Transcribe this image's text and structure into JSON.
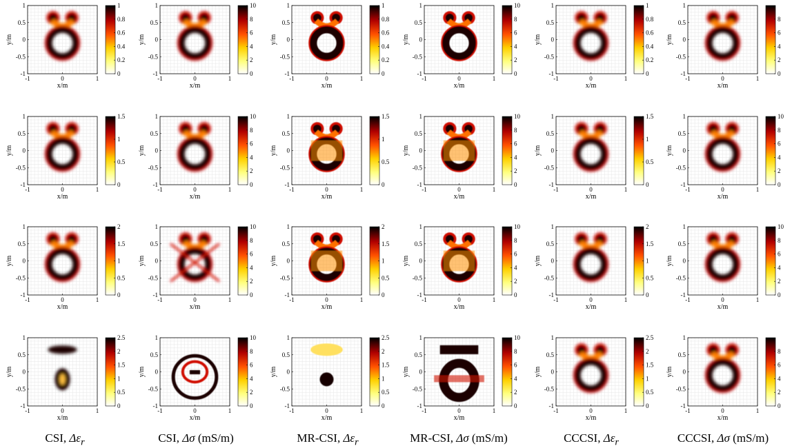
{
  "figure": {
    "columns": [
      {
        "method": "CSI",
        "quantity": "Δε",
        "sub": "r",
        "unit": ""
      },
      {
        "method": "CSI",
        "quantity": "Δσ",
        "sub": "",
        "unit": "(mS/m)"
      },
      {
        "method": "MR-CSI",
        "quantity": "Δε",
        "sub": "r",
        "unit": ""
      },
      {
        "method": "MR-CSI",
        "quantity": "Δσ",
        "sub": "",
        "unit": "(mS/m)"
      },
      {
        "method": "CCCSI",
        "quantity": "Δε",
        "sub": "r",
        "unit": ""
      },
      {
        "method": "CCCSI",
        "quantity": "Δσ",
        "sub": "",
        "unit": "(mS/m)"
      }
    ]
  },
  "chart_data": [
    {
      "type": "heatmap",
      "row": 1,
      "col": 1,
      "xlabel": "x/m",
      "ylabel": "y/m",
      "xlim": [
        -1,
        1
      ],
      "ylim": [
        -1,
        1
      ],
      "xticks": [
        -1,
        0,
        1
      ],
      "yticks": [
        -1,
        -0.5,
        0,
        0.5,
        1
      ],
      "grid": true,
      "colormap": "hot-inverted",
      "colorbar": {
        "range": [
          0,
          1
        ],
        "ticks": [
          0,
          0.2,
          0.4,
          0.6,
          0.8,
          1
        ]
      },
      "shape": "ring-with-ears",
      "sharpness": "smooth"
    },
    {
      "type": "heatmap",
      "row": 1,
      "col": 2,
      "xlabel": "x/m",
      "ylabel": "y/m",
      "xlim": [
        -1,
        1
      ],
      "ylim": [
        -1,
        1
      ],
      "xticks": [
        -1,
        0,
        1
      ],
      "yticks": [
        -1,
        -0.5,
        0,
        0.5,
        1
      ],
      "grid": true,
      "colormap": "hot-inverted",
      "colorbar": {
        "range": [
          0,
          10
        ],
        "ticks": [
          0,
          2,
          4,
          6,
          8,
          10
        ]
      },
      "shape": "ring-with-ears",
      "sharpness": "smooth"
    },
    {
      "type": "heatmap",
      "row": 1,
      "col": 3,
      "xlabel": "x/m",
      "ylabel": "y/m",
      "xlim": [
        -1,
        1
      ],
      "ylim": [
        -1,
        1
      ],
      "xticks": [
        -1,
        0,
        1
      ],
      "yticks": [
        -1,
        -0.5,
        0,
        0.5,
        1
      ],
      "grid": true,
      "colormap": "hot-inverted",
      "colorbar": {
        "range": [
          0,
          1
        ],
        "ticks": [
          0,
          0.2,
          0.4,
          0.6,
          0.8,
          1
        ]
      },
      "shape": "ring-with-ears",
      "sharpness": "blocky"
    },
    {
      "type": "heatmap",
      "row": 1,
      "col": 4,
      "xlabel": "x/m",
      "ylabel": "y/m",
      "xlim": [
        -1,
        1
      ],
      "ylim": [
        -1,
        1
      ],
      "xticks": [
        -1,
        0,
        1
      ],
      "yticks": [
        -1,
        -0.5,
        0,
        0.5,
        1
      ],
      "grid": true,
      "colormap": "hot-inverted",
      "colorbar": {
        "range": [
          0,
          10
        ],
        "ticks": [
          0,
          2,
          4,
          6,
          8,
          10
        ]
      },
      "shape": "ring-with-ears",
      "sharpness": "blocky"
    },
    {
      "type": "heatmap",
      "row": 1,
      "col": 5,
      "xlabel": "x/m",
      "ylabel": "y/m",
      "xlim": [
        -1,
        1
      ],
      "ylim": [
        -1,
        1
      ],
      "xticks": [
        -1,
        0,
        1
      ],
      "yticks": [
        -1,
        -0.5,
        0,
        0.5,
        1
      ],
      "grid": true,
      "colormap": "hot-inverted",
      "colorbar": {
        "range": [
          0,
          1
        ],
        "ticks": [
          0,
          0.2,
          0.4,
          0.6,
          0.8,
          1
        ]
      },
      "shape": "ring-with-ears",
      "sharpness": "smooth"
    },
    {
      "type": "heatmap",
      "row": 1,
      "col": 6,
      "xlabel": "x/m",
      "ylabel": "y/m",
      "xlim": [
        -1,
        1
      ],
      "ylim": [
        -1,
        1
      ],
      "xticks": [
        -1,
        0,
        1
      ],
      "yticks": [
        -1,
        -0.5,
        0,
        0.5,
        1
      ],
      "grid": true,
      "colormap": "hot-inverted",
      "colorbar": {
        "range": [
          0,
          10
        ],
        "ticks": [
          0,
          2,
          4,
          6,
          8
        ]
      },
      "shape": "ring-with-ears",
      "sharpness": "smooth"
    },
    {
      "type": "heatmap",
      "row": 2,
      "col": 1,
      "xlabel": "x/m",
      "ylabel": "y/m",
      "xlim": [
        -1,
        1
      ],
      "ylim": [
        -1,
        1
      ],
      "xticks": [
        -1,
        0,
        1
      ],
      "yticks": [
        -1,
        -0.5,
        0,
        0.5,
        1
      ],
      "grid": true,
      "colormap": "hot-inverted",
      "colorbar": {
        "range": [
          0,
          1.5
        ],
        "ticks": [
          0,
          0.5,
          1,
          1.5
        ]
      },
      "shape": "ring-with-ears",
      "sharpness": "smooth"
    },
    {
      "type": "heatmap",
      "row": 2,
      "col": 2,
      "xlabel": "x/m",
      "ylabel": "y/m",
      "xlim": [
        -1,
        1
      ],
      "ylim": [
        -1,
        1
      ],
      "xticks": [
        -1,
        0,
        1
      ],
      "yticks": [
        -1,
        -0.5,
        0,
        0.5,
        1
      ],
      "grid": true,
      "colormap": "hot-inverted",
      "colorbar": {
        "range": [
          0,
          10
        ],
        "ticks": [
          0,
          2,
          4,
          6,
          8,
          10
        ]
      },
      "shape": "ring-with-ears",
      "sharpness": "smooth"
    },
    {
      "type": "heatmap",
      "row": 2,
      "col": 3,
      "xlabel": "x/m",
      "ylabel": "y/m",
      "xlim": [
        -1,
        1
      ],
      "ylim": [
        -1,
        1
      ],
      "xticks": [
        -1,
        0,
        1
      ],
      "yticks": [
        -1,
        -0.5,
        0,
        0.5,
        1
      ],
      "grid": true,
      "colormap": "hot-inverted",
      "colorbar": {
        "range": [
          0,
          1.5
        ],
        "ticks": [
          0,
          0.5,
          1,
          1.5
        ]
      },
      "shape": "ring-with-ears",
      "sharpness": "blocky"
    },
    {
      "type": "heatmap",
      "row": 2,
      "col": 4,
      "xlabel": "x/m",
      "ylabel": "y/m",
      "xlim": [
        -1,
        1
      ],
      "ylim": [
        -1,
        1
      ],
      "xticks": [
        -1,
        0,
        1
      ],
      "yticks": [
        -1,
        -0.5,
        0,
        0.5,
        1
      ],
      "grid": true,
      "colormap": "hot-inverted",
      "colorbar": {
        "range": [
          0,
          10
        ],
        "ticks": [
          0,
          2,
          4,
          6,
          8,
          10
        ]
      },
      "shape": "ring-with-ears",
      "sharpness": "blocky"
    },
    {
      "type": "heatmap",
      "row": 2,
      "col": 5,
      "xlabel": "x/m",
      "ylabel": "y/m",
      "xlim": [
        -1,
        1
      ],
      "ylim": [
        -1,
        1
      ],
      "xticks": [
        -1,
        0,
        1
      ],
      "yticks": [
        -1,
        -0.5,
        0,
        0.5,
        1
      ],
      "grid": true,
      "colormap": "hot-inverted",
      "colorbar": {
        "range": [
          0,
          1.5
        ],
        "ticks": [
          0,
          0.5,
          1,
          1.5
        ]
      },
      "shape": "ring-with-ears",
      "sharpness": "smooth"
    },
    {
      "type": "heatmap",
      "row": 2,
      "col": 6,
      "xlabel": "x/m",
      "ylabel": "y/m",
      "xlim": [
        -1,
        1
      ],
      "ylim": [
        -1,
        1
      ],
      "xticks": [
        -1,
        0,
        1
      ],
      "yticks": [
        -1,
        -0.5,
        0,
        0.5,
        1
      ],
      "grid": true,
      "colormap": "hot-inverted",
      "colorbar": {
        "range": [
          0,
          10
        ],
        "ticks": [
          0,
          2,
          4,
          6,
          8,
          10
        ]
      },
      "shape": "ring-with-ears",
      "sharpness": "smooth"
    },
    {
      "type": "heatmap",
      "row": 3,
      "col": 1,
      "xlabel": "x/m",
      "ylabel": "y/m",
      "xlim": [
        -1,
        1
      ],
      "ylim": [
        -1,
        1
      ],
      "xticks": [
        -1,
        0,
        1
      ],
      "yticks": [
        -1,
        -0.5,
        0,
        0.5,
        1
      ],
      "grid": true,
      "colormap": "hot-inverted",
      "colorbar": {
        "range": [
          0,
          2
        ],
        "ticks": [
          0,
          0.5,
          1,
          1.5,
          2
        ]
      },
      "shape": "ring-with-ears",
      "sharpness": "smooth"
    },
    {
      "type": "heatmap",
      "row": 3,
      "col": 2,
      "xlabel": "x/m",
      "ylabel": "y/m",
      "xlim": [
        -1,
        1
      ],
      "ylim": [
        -1,
        1
      ],
      "xticks": [
        -1,
        0,
        1
      ],
      "yticks": [
        -1,
        -0.5,
        0,
        0.5,
        1
      ],
      "grid": true,
      "colormap": "hot-inverted",
      "colorbar": {
        "range": [
          0,
          10
        ],
        "ticks": [
          0,
          2,
          4,
          6,
          8,
          10
        ]
      },
      "shape": "distorted",
      "sharpness": "smooth"
    },
    {
      "type": "heatmap",
      "row": 3,
      "col": 3,
      "xlabel": "x/m",
      "ylabel": "y/m",
      "xlim": [
        -1,
        1
      ],
      "ylim": [
        -1,
        1
      ],
      "xticks": [
        -1,
        0,
        1
      ],
      "yticks": [
        -1,
        -0.5,
        0,
        0.5,
        1
      ],
      "grid": true,
      "colormap": "hot-inverted",
      "colorbar": {
        "range": [
          0,
          2
        ],
        "ticks": [
          0,
          0.5,
          1,
          1.5,
          2
        ]
      },
      "shape": "ring-with-ears",
      "sharpness": "blocky"
    },
    {
      "type": "heatmap",
      "row": 3,
      "col": 4,
      "xlabel": "x/m",
      "ylabel": "y/m",
      "xlim": [
        -1,
        1
      ],
      "ylim": [
        -1,
        1
      ],
      "xticks": [
        -1,
        0,
        1
      ],
      "yticks": [
        -1,
        -0.5,
        0,
        0.5,
        1
      ],
      "grid": true,
      "colormap": "hot-inverted",
      "colorbar": {
        "range": [
          0,
          10
        ],
        "ticks": [
          0,
          2,
          4,
          6,
          8,
          10
        ]
      },
      "shape": "ring-with-ears",
      "sharpness": "blocky"
    },
    {
      "type": "heatmap",
      "row": 3,
      "col": 5,
      "xlabel": "x/m",
      "ylabel": "y/m",
      "xlim": [
        -1,
        1
      ],
      "ylim": [
        -1,
        1
      ],
      "xticks": [
        -1,
        0,
        1
      ],
      "yticks": [
        -1,
        -0.5,
        0,
        0.5,
        1
      ],
      "grid": true,
      "colormap": "hot-inverted",
      "colorbar": {
        "range": [
          0,
          2
        ],
        "ticks": [
          0,
          0.5,
          1,
          1.5,
          2
        ]
      },
      "shape": "ring-with-ears",
      "sharpness": "smooth"
    },
    {
      "type": "heatmap",
      "row": 3,
      "col": 6,
      "xlabel": "x/m",
      "ylabel": "y/m",
      "xlim": [
        -1,
        1
      ],
      "ylim": [
        -1,
        1
      ],
      "xticks": [
        -1,
        0,
        1
      ],
      "yticks": [
        -1,
        -0.5,
        0,
        0.5,
        1
      ],
      "grid": true,
      "colormap": "hot-inverted",
      "colorbar": {
        "range": [
          0,
          10
        ],
        "ticks": [
          0,
          2,
          4,
          6,
          8,
          10
        ]
      },
      "shape": "ring-with-ears",
      "sharpness": "smooth"
    },
    {
      "type": "heatmap",
      "row": 4,
      "col": 1,
      "xlabel": "x/m",
      "ylabel": "y/m",
      "xlim": [
        -1,
        1
      ],
      "ylim": [
        -1,
        1
      ],
      "xticks": [
        -1,
        0,
        1
      ],
      "yticks": [
        -1,
        -0.5,
        0,
        0.5,
        1
      ],
      "grid": true,
      "colormap": "hot-inverted",
      "colorbar": {
        "range": [
          0,
          2.5
        ],
        "ticks": [
          0,
          0.5,
          1,
          1.5,
          2,
          2.5
        ]
      },
      "shape": "bar-and-blob",
      "sharpness": "smooth"
    },
    {
      "type": "heatmap",
      "row": 4,
      "col": 2,
      "xlabel": "x/m",
      "ylabel": "y/m",
      "xlim": [
        -1,
        1
      ],
      "ylim": [
        -1,
        1
      ],
      "xticks": [
        -1,
        0,
        1
      ],
      "yticks": [
        -1,
        -0.5,
        0,
        0.5,
        1
      ],
      "grid": true,
      "colormap": "hot-inverted",
      "colorbar": {
        "range": [
          0,
          10
        ],
        "ticks": [
          0,
          2,
          4,
          6,
          8,
          10
        ]
      },
      "shape": "distorted-ring",
      "sharpness": "blocky"
    },
    {
      "type": "heatmap",
      "row": 4,
      "col": 3,
      "xlabel": "x/m",
      "ylabel": "y/m",
      "xlim": [
        -1,
        1
      ],
      "ylim": [
        -1,
        1
      ],
      "xticks": [
        -1,
        0,
        1
      ],
      "yticks": [
        -1,
        -0.5,
        0,
        0.5,
        1
      ],
      "grid": true,
      "colormap": "hot-inverted",
      "colorbar": {
        "range": [
          0,
          2.5
        ],
        "ticks": [
          0,
          0.5,
          1,
          1.5,
          2,
          2.5
        ]
      },
      "shape": "bar-and-blob",
      "sharpness": "blocky"
    },
    {
      "type": "heatmap",
      "row": 4,
      "col": 4,
      "xlabel": "x/m",
      "ylabel": "y/m",
      "xlim": [
        -1,
        1
      ],
      "ylim": [
        -1,
        1
      ],
      "xticks": [
        -1,
        0,
        1
      ],
      "yticks": [
        -1,
        -0.5,
        0,
        0.5,
        1
      ],
      "grid": true,
      "colormap": "hot-inverted",
      "colorbar": {
        "range": [
          0,
          10
        ],
        "ticks": [
          0,
          2,
          4,
          6,
          8,
          10
        ]
      },
      "shape": "block-ring",
      "sharpness": "blocky"
    },
    {
      "type": "heatmap",
      "row": 4,
      "col": 5,
      "xlabel": "x/m",
      "ylabel": "y/m",
      "xlim": [
        -1,
        1
      ],
      "ylim": [
        -1,
        1
      ],
      "xticks": [
        -1,
        0,
        1
      ],
      "yticks": [
        -1,
        -0.5,
        0,
        0.5,
        1
      ],
      "grid": true,
      "colormap": "hot-inverted",
      "colorbar": {
        "range": [
          0,
          2.5
        ],
        "ticks": [
          0,
          0.5,
          1,
          1.5,
          2,
          2.5
        ]
      },
      "shape": "ring-with-ears",
      "sharpness": "smooth"
    },
    {
      "type": "heatmap",
      "row": 4,
      "col": 6,
      "xlabel": "x/m",
      "ylabel": "y/m",
      "xlim": [
        -1,
        1
      ],
      "ylim": [
        -1,
        1
      ],
      "xticks": [
        -1,
        0,
        1
      ],
      "yticks": [
        -1,
        -0.5,
        0,
        0.5,
        1
      ],
      "grid": true,
      "colormap": "hot-inverted",
      "colorbar": {
        "range": [
          0,
          10
        ],
        "ticks": [
          0,
          2,
          4,
          6,
          8
        ]
      },
      "shape": "ring-with-ears",
      "sharpness": "smooth"
    }
  ]
}
